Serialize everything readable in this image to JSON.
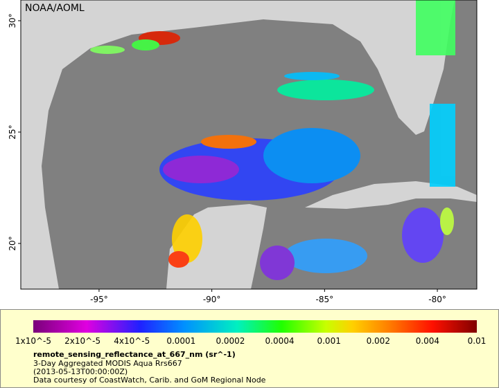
{
  "map": {
    "credit": "NOAA/AOML",
    "lon_range": [
      -98.47,
      -78.25
    ],
    "lat_range": [
      17.95,
      30.93
    ],
    "lon_ticks": [
      {
        "value": -95,
        "label": "-95°"
      },
      {
        "value": -90,
        "label": "-90°"
      },
      {
        "value": -85,
        "label": "-85°"
      },
      {
        "value": -80,
        "label": "-80°"
      }
    ],
    "lat_ticks": [
      {
        "value": 30,
        "label": "30°"
      },
      {
        "value": 25,
        "label": "25°"
      },
      {
        "value": 20,
        "label": "20°"
      }
    ]
  },
  "legend": {
    "scale_labels": [
      "1x10^-5",
      "2x10^-5",
      "4x10^-5",
      "0.0001",
      "0.0002",
      "0.0004",
      "0.001",
      "0.002",
      "0.004",
      "0.01"
    ],
    "title": "remote_sensing_reflectance_at_667_nm (sr^-1)",
    "lines": [
      "3-Day Aggregated MODIS Aqua Rrs667",
      "(2013-05-13T00:00:00Z)",
      "Data courtesy of CoastWatch, Carib. and GoM Regional Node"
    ]
  }
}
